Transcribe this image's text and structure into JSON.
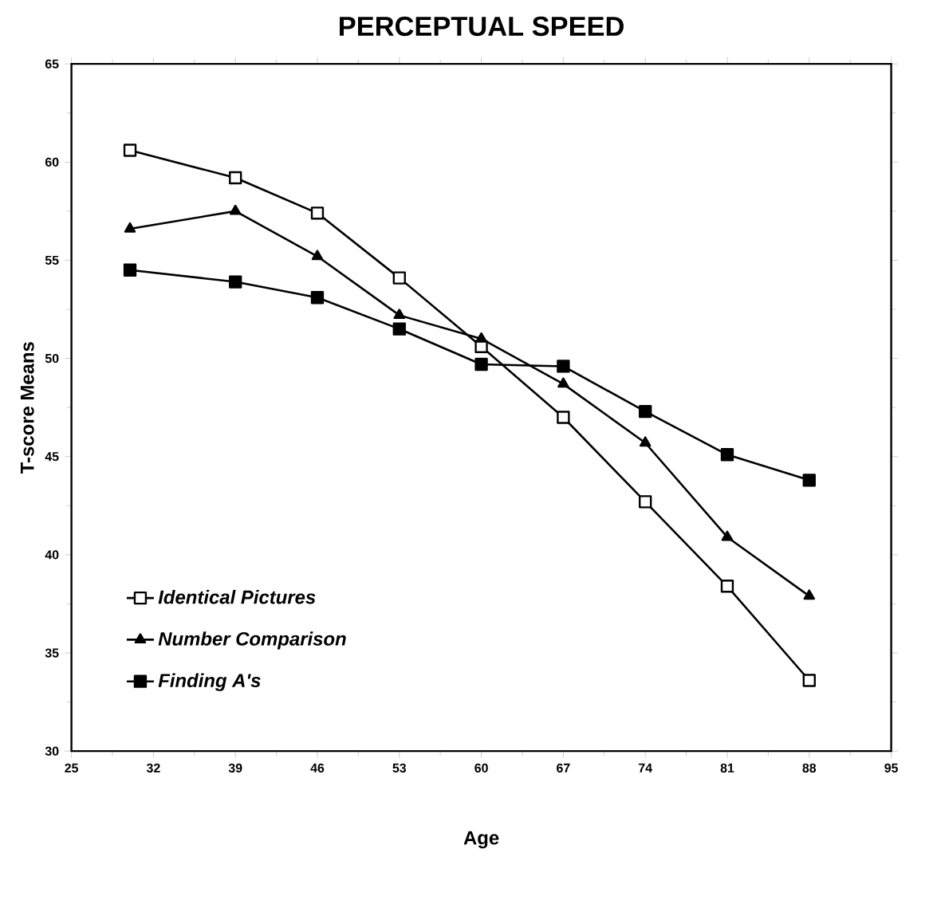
{
  "chart_data": {
    "type": "line",
    "title": "PERCEPTUAL SPEED",
    "xlabel": "Age",
    "ylabel": "T-score  Means",
    "x": [
      30,
      39,
      46,
      53,
      60,
      67,
      74,
      81,
      88
    ],
    "series": [
      {
        "name": "Identical  Pictures",
        "color": "#000000",
        "marker": "square",
        "values": [
          60.6,
          59.2,
          57.4,
          54.1,
          50.6,
          47.0,
          42.7,
          38.4,
          33.6
        ]
      },
      {
        "name": "Number  Comparison",
        "color": "#000000",
        "marker": "triangle",
        "values": [
          56.6,
          57.5,
          55.2,
          52.2,
          51.0,
          48.7,
          45.7,
          40.9,
          37.9
        ]
      },
      {
        "name": "Finding  A's",
        "color": "#000000",
        "marker": "square",
        "values": [
          54.5,
          53.9,
          53.1,
          51.5,
          49.7,
          49.6,
          47.3,
          45.1,
          43.8
        ]
      }
    ],
    "xlim": [
      25,
      95
    ],
    "xticks": [
      25,
      32,
      39,
      46,
      53,
      60,
      67,
      74,
      81,
      88,
      95
    ],
    "ylim": [
      30,
      65
    ],
    "yticks": [
      30,
      35,
      40,
      45,
      50,
      55,
      60,
      65
    ],
    "grid": false,
    "legend": "bottom left",
    "line_style": "solid"
  }
}
